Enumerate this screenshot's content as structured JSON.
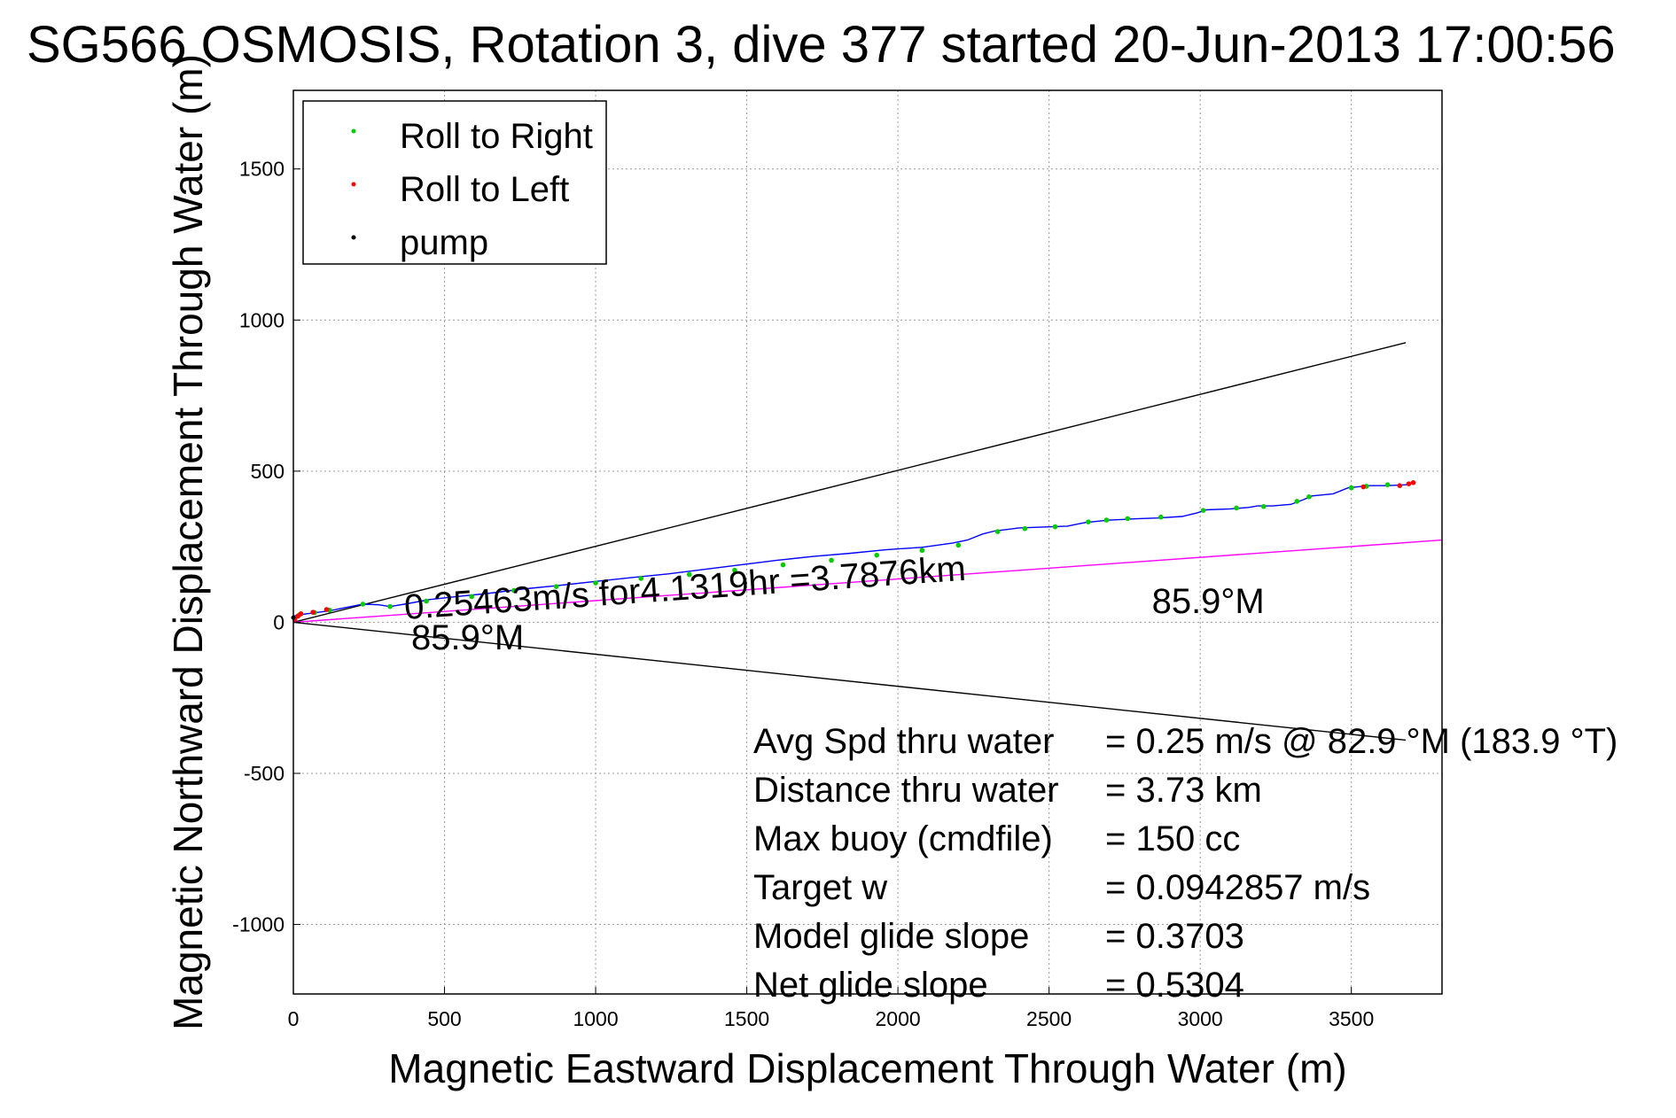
{
  "chart_data": {
    "type": "line",
    "title": "SG566 OSMOSIS, Rotation 3, dive 377 started 20-Jun-2013 17:00:56",
    "xlabel": "Magnetic Eastward Displacement Through Water (m)",
    "ylabel": "Magnetic Northward Displacement Through Water (m)",
    "xlim": [
      0,
      3800
    ],
    "ylim": [
      -1230,
      1760
    ],
    "xticks": [
      0,
      500,
      1000,
      1500,
      2000,
      2500,
      3000,
      3500
    ],
    "yticks": [
      -1000,
      -500,
      0,
      500,
      1000,
      1500
    ],
    "grid": true,
    "legend": {
      "placement": "top-left",
      "entries": [
        {
          "label": "Roll to Right",
          "color": "#00cc00"
        },
        {
          "label": "Roll to Left",
          "color": "#ff0000"
        },
        {
          "label": "pump",
          "color": "#000000"
        }
      ]
    },
    "series": [
      {
        "name": "track",
        "color": "#0000ff",
        "x": [
          0,
          20,
          60,
          120,
          180,
          230,
          280,
          320,
          380,
          450,
          540,
          640,
          760,
          880,
          1000,
          1120,
          1240,
          1360,
          1480,
          1600,
          1720,
          1840,
          1960,
          2080,
          2180,
          2230,
          2280,
          2320,
          2400,
          2480,
          2560,
          2620,
          2700,
          2780,
          2860,
          2940,
          2990,
          3020,
          3100,
          3160,
          3190,
          3240,
          3300,
          3340,
          3370,
          3440,
          3490,
          3520,
          3560,
          3620,
          3680,
          3710
        ],
        "y": [
          20,
          25,
          30,
          38,
          50,
          60,
          58,
          52,
          62,
          75,
          85,
          95,
          110,
          122,
          135,
          148,
          160,
          175,
          190,
          205,
          218,
          228,
          240,
          248,
          262,
          272,
          292,
          302,
          312,
          315,
          318,
          330,
          338,
          342,
          345,
          350,
          362,
          372,
          375,
          380,
          385,
          385,
          390,
          405,
          418,
          425,
          445,
          448,
          452,
          452,
          455,
          462
        ]
      },
      {
        "name": "Roll to Right",
        "color": "#00cc00",
        "x": [
          20,
          70,
          120,
          230,
          320,
          440,
          590,
          730,
          870,
          1000,
          1150,
          1310,
          1460,
          1620,
          1780,
          1930,
          2080,
          2200,
          2330,
          2420,
          2520,
          2630,
          2690,
          2760,
          2870,
          3010,
          3120,
          3210,
          3320,
          3360,
          3500,
          3550,
          3620
        ],
        "y": [
          25,
          32,
          40,
          60,
          52,
          70,
          85,
          105,
          118,
          130,
          145,
          158,
          172,
          190,
          205,
          222,
          238,
          255,
          300,
          310,
          316,
          332,
          338,
          343,
          348,
          370,
          378,
          383,
          400,
          415,
          445,
          450,
          455
        ]
      },
      {
        "name": "Roll to Left",
        "color": "#ff0000",
        "x": [
          5,
          15,
          25,
          65,
          110,
          3540,
          3660,
          3690,
          3705
        ],
        "y": [
          10,
          20,
          28,
          33,
          42,
          448,
          452,
          458,
          462
        ]
      },
      {
        "name": "pump",
        "color": "#000000",
        "x": [
          0
        ],
        "y": [
          15
        ]
      }
    ],
    "reference_lines": [
      {
        "color": "#000000",
        "x": [
          0,
          3680
        ],
        "y": [
          0,
          925
        ]
      },
      {
        "color": "#000000",
        "x": [
          0,
          3680
        ],
        "y": [
          0,
          -390
        ]
      },
      {
        "color": "#ff00ff",
        "x": [
          0,
          3800
        ],
        "y": [
          0,
          272
        ]
      }
    ],
    "annotations": [
      {
        "text": "0.25463m/s for4.1319hr =3.7876km",
        "x": 370,
        "y": 10,
        "angle": -4
      },
      {
        "text": "85.9°M",
        "x": 390,
        "y": -90,
        "angle": 0
      },
      {
        "text": "85.9°M",
        "x": 2840,
        "y": 30,
        "angle": 0
      }
    ],
    "stats": [
      {
        "label": "Avg Spd thru water",
        "value": "=  0.25 m/s @  82.9 °M (183.9 °T)"
      },
      {
        "label": "Distance thru water",
        "value": "=  3.73 km"
      },
      {
        "label": "Max buoy (cmdfile)",
        "value": "= 150 cc"
      },
      {
        "label": "Target w",
        "value": "= 0.0942857 m/s"
      },
      {
        "label": "Model glide slope",
        "value": "= 0.3703"
      },
      {
        "label": "Net glide slope",
        "value": "= 0.5304"
      }
    ]
  }
}
